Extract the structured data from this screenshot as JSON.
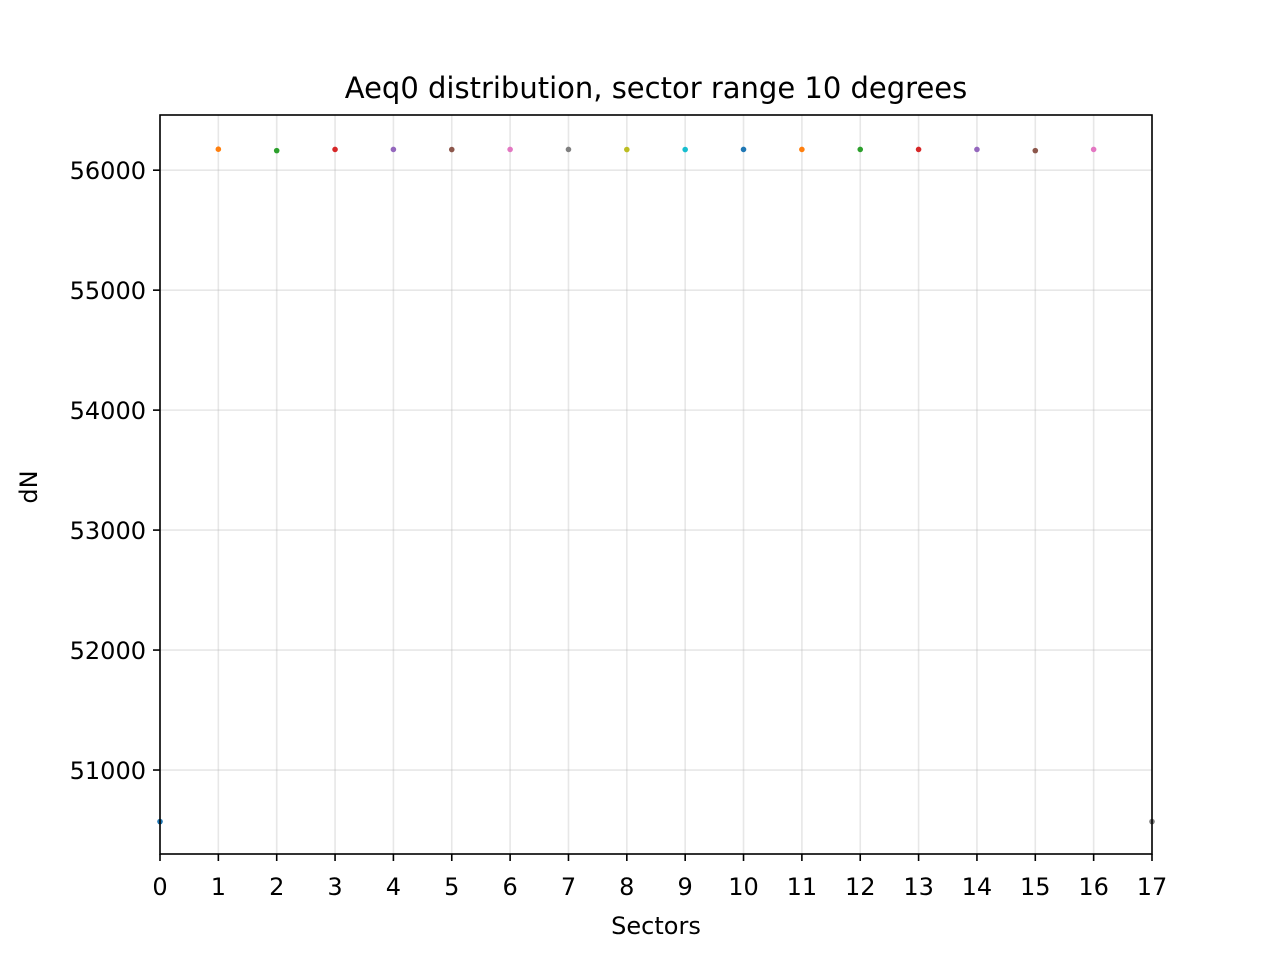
{
  "chart_data": {
    "type": "scatter",
    "title": "Aeq0 distribution, sector range 10 degrees",
    "xlabel": "Sectors",
    "ylabel": "dN",
    "xlim": [
      0,
      17
    ],
    "ylim": [
      50300,
      56460
    ],
    "grid": true,
    "x_ticks": [
      "0",
      "1",
      "2",
      "3",
      "4",
      "5",
      "6",
      "7",
      "8",
      "9",
      "10",
      "11",
      "12",
      "13",
      "14",
      "15",
      "16",
      "17"
    ],
    "y_ticks": [
      "51000",
      "52000",
      "53000",
      "54000",
      "55000",
      "56000"
    ],
    "series": [
      {
        "x": 0,
        "y": 50570,
        "color": "#1f77b4"
      },
      {
        "x": 1,
        "y": 56175,
        "color": "#ff7f0e"
      },
      {
        "x": 2,
        "y": 56163,
        "color": "#2ca02c"
      },
      {
        "x": 3,
        "y": 56173,
        "color": "#d62728"
      },
      {
        "x": 4,
        "y": 56173,
        "color": "#9467bd"
      },
      {
        "x": 5,
        "y": 56172,
        "color": "#8c564b"
      },
      {
        "x": 6,
        "y": 56173,
        "color": "#e377c2"
      },
      {
        "x": 7,
        "y": 56173,
        "color": "#7f7f7f"
      },
      {
        "x": 8,
        "y": 56172,
        "color": "#bcbd22"
      },
      {
        "x": 9,
        "y": 56172,
        "color": "#17becf"
      },
      {
        "x": 10,
        "y": 56173,
        "color": "#1f77b4"
      },
      {
        "x": 11,
        "y": 56173,
        "color": "#ff7f0e"
      },
      {
        "x": 12,
        "y": 56173,
        "color": "#2ca02c"
      },
      {
        "x": 13,
        "y": 56173,
        "color": "#d62728"
      },
      {
        "x": 14,
        "y": 56173,
        "color": "#9467bd"
      },
      {
        "x": 15,
        "y": 56163,
        "color": "#8c564b"
      },
      {
        "x": 16,
        "y": 56173,
        "color": "#e377c2"
      },
      {
        "x": 17,
        "y": 50570,
        "color": "#7f7f7f"
      }
    ]
  }
}
